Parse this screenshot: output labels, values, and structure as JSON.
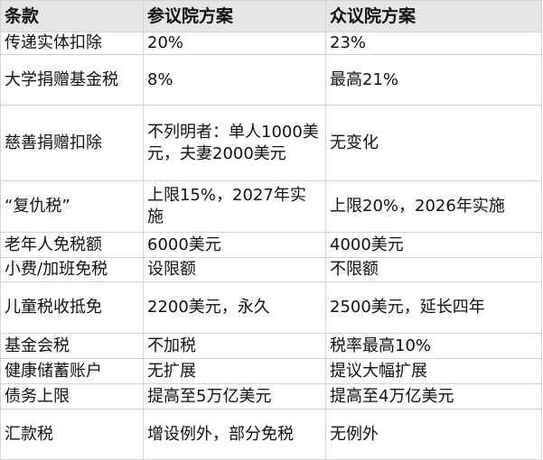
{
  "table": {
    "headers": [
      "条款",
      "参议院方案",
      "众议院方案"
    ],
    "rows": [
      [
        "传递实体扣除",
        "20%",
        "23%"
      ],
      [
        "大学捐赠基金税",
        "8%",
        "最高21%"
      ],
      [
        "慈善捐赠扣除",
        "不列明者：单人1000美元，夫妻2000美元",
        "无变化"
      ],
      [
        "“复仇税”",
        "上限15%，2027年实施",
        "上限20%，2026年实施"
      ],
      [
        "老年人免税额",
        "6000美元",
        "4000美元"
      ],
      [
        "小费/加班免税",
        "设限额",
        "不限额"
      ],
      [
        "儿童税收抵免",
        "2200美元，永久",
        "2500美元，延长四年"
      ],
      [
        "基金会税",
        "不加税",
        "税率最高10%"
      ],
      [
        "健康储蓄账户",
        "无扩展",
        "提议大幅扩展"
      ],
      [
        "债务上限",
        "提高至5万亿美元",
        "提高至4万亿美元"
      ],
      [
        "汇款税",
        "增设例外，部分免税",
        "无例外"
      ]
    ]
  },
  "colors": {
    "header_bg": "#e6e6e6",
    "border": "#d4d4d4"
  }
}
